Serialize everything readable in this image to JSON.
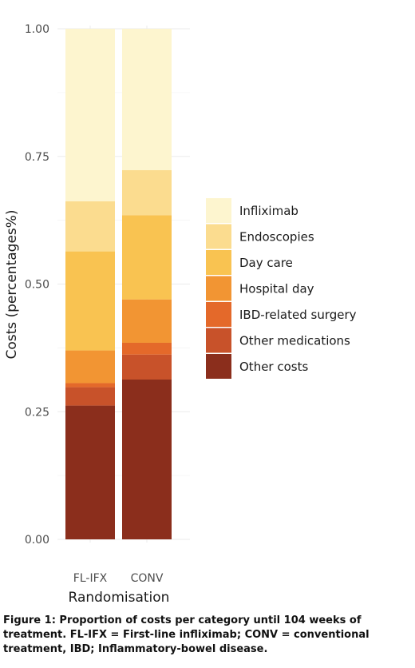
{
  "chart_data": {
    "type": "bar",
    "stacked": true,
    "title": "",
    "xlabel": "Randomisation",
    "ylabel": "Costs (percentages%)",
    "ylim": [
      0,
      1
    ],
    "yticks": [
      "0.00",
      "0.25",
      "0.50",
      "0.75",
      "1.00"
    ],
    "categories": [
      "FL-IFX",
      "CONV"
    ],
    "grid": true,
    "legend_position": "right",
    "series": [
      {
        "name": "Other costs",
        "color": "#8b2e1c",
        "values": [
          0.262,
          0.313
        ]
      },
      {
        "name": "Other medications",
        "color": "#c8522a",
        "values": [
          0.036,
          0.049
        ]
      },
      {
        "name": "IBD-related surgery",
        "color": "#e4692a",
        "values": [
          0.008,
          0.023
        ]
      },
      {
        "name": "Hospital day",
        "color": "#f29533",
        "values": [
          0.064,
          0.085
        ]
      },
      {
        "name": "Day care",
        "color": "#f9c351",
        "values": [
          0.194,
          0.165
        ]
      },
      {
        "name": "Endoscopies",
        "color": "#fbdc8f",
        "values": [
          0.098,
          0.088
        ]
      },
      {
        "name": "Infliximab",
        "color": "#fdf5cf",
        "values": [
          0.338,
          0.277
        ]
      }
    ],
    "legend_order": [
      "Infliximab",
      "Endoscopies",
      "Day care",
      "Hospital day",
      "IBD-related surgery",
      "Other medications",
      "Other costs"
    ]
  },
  "caption": "Figure 1: Proportion of costs per category until 104 weeks of treatment. FL-IFX = First-line infliximab; CONV = conventional treatment, IBD; Inflammatory-bowel disease."
}
